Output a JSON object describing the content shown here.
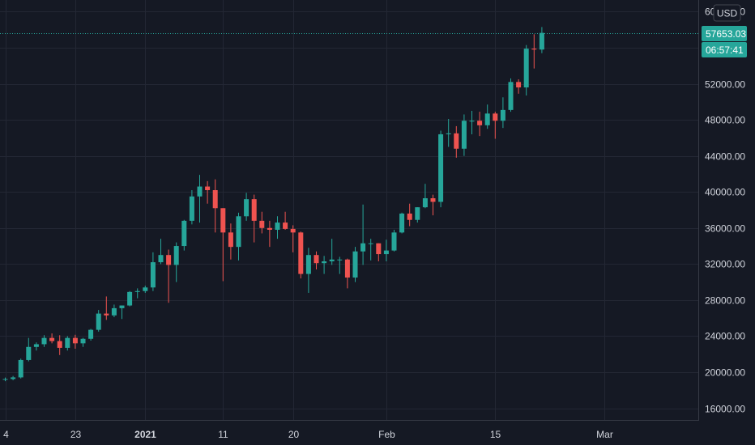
{
  "currency_button": "USD",
  "last_price_label": "57653.03",
  "countdown_label": "06:57:41",
  "colors": {
    "background": "#151924",
    "grid": "#232734",
    "axis_text": "#d1d4dc",
    "up": "#26a69a",
    "down": "#ef5350",
    "price_line": "#26a69a"
  },
  "chart_data": {
    "type": "candlestick",
    "title": "",
    "xlabel": "",
    "ylabel": "",
    "ylim": [
      14700,
      61300
    ],
    "y_ticks": [
      16000,
      20000,
      24000,
      28000,
      32000,
      36000,
      40000,
      44000,
      48000,
      52000,
      56000,
      60000
    ],
    "y_tick_labels": [
      "16000.00",
      "20000.00",
      "24000.00",
      "28000.00",
      "32000.00",
      "36000.00",
      "40000.00",
      "44000.00",
      "48000.00",
      "52000.00",
      "56000.00",
      "60000.00"
    ],
    "x_ticks": [
      "Dec 14",
      "Dec 23",
      "2021",
      "Jan 11",
      "Jan 20",
      "Feb",
      "Feb 15",
      "Mar"
    ],
    "x_tick_labels": [
      "4",
      "23",
      "2021",
      "11",
      "20",
      "Feb",
      "15",
      "Mar"
    ],
    "last_price": 57653.03,
    "grid": true,
    "candles": [
      {
        "date": "Dec 14",
        "o": 19180,
        "h": 19400,
        "l": 19000,
        "c": 19240
      },
      {
        "date": "Dec 15",
        "o": 19240,
        "h": 19580,
        "l": 19100,
        "c": 19420
      },
      {
        "date": "Dec 16",
        "o": 19420,
        "h": 21500,
        "l": 19300,
        "c": 21350
      },
      {
        "date": "Dec 17",
        "o": 21350,
        "h": 23800,
        "l": 21200,
        "c": 22800
      },
      {
        "date": "Dec 18",
        "o": 22800,
        "h": 23300,
        "l": 22400,
        "c": 23100
      },
      {
        "date": "Dec 19",
        "o": 23100,
        "h": 24100,
        "l": 22800,
        "c": 23800
      },
      {
        "date": "Dec 20",
        "o": 23800,
        "h": 24300,
        "l": 23200,
        "c": 23450
      },
      {
        "date": "Dec 21",
        "o": 23450,
        "h": 24100,
        "l": 21900,
        "c": 22700
      },
      {
        "date": "Dec 22",
        "o": 22700,
        "h": 24000,
        "l": 22400,
        "c": 23800
      },
      {
        "date": "Dec 23",
        "o": 23800,
        "h": 24150,
        "l": 22600,
        "c": 23200
      },
      {
        "date": "Dec 24",
        "o": 23200,
        "h": 23800,
        "l": 22800,
        "c": 23700
      },
      {
        "date": "Dec 25",
        "o": 23700,
        "h": 24800,
        "l": 23500,
        "c": 24700
      },
      {
        "date": "Dec 26",
        "o": 24700,
        "h": 26900,
        "l": 24500,
        "c": 26500
      },
      {
        "date": "Dec 27",
        "o": 26500,
        "h": 28400,
        "l": 25800,
        "c": 26300
      },
      {
        "date": "Dec 28",
        "o": 26300,
        "h": 27500,
        "l": 26100,
        "c": 27100
      },
      {
        "date": "Dec 29",
        "o": 27100,
        "h": 27400,
        "l": 25900,
        "c": 27400
      },
      {
        "date": "Dec 30",
        "o": 27400,
        "h": 29000,
        "l": 27300,
        "c": 28900
      },
      {
        "date": "Dec 31",
        "o": 28900,
        "h": 29300,
        "l": 28200,
        "c": 29000
      },
      {
        "date": "Jan 1",
        "o": 29000,
        "h": 29600,
        "l": 28800,
        "c": 29400
      },
      {
        "date": "Jan 2",
        "o": 29400,
        "h": 33300,
        "l": 29000,
        "c": 32200
      },
      {
        "date": "Jan 3",
        "o": 32200,
        "h": 34800,
        "l": 32000,
        "c": 33000
      },
      {
        "date": "Jan 4",
        "o": 33000,
        "h": 33600,
        "l": 27700,
        "c": 31900
      },
      {
        "date": "Jan 5",
        "o": 31900,
        "h": 34400,
        "l": 30000,
        "c": 34000
      },
      {
        "date": "Jan 6",
        "o": 34000,
        "h": 36900,
        "l": 33500,
        "c": 36800
      },
      {
        "date": "Jan 7",
        "o": 36800,
        "h": 40200,
        "l": 36400,
        "c": 39500
      },
      {
        "date": "Jan 8",
        "o": 39500,
        "h": 41900,
        "l": 36600,
        "c": 40600
      },
      {
        "date": "Jan 9",
        "o": 40600,
        "h": 41200,
        "l": 38700,
        "c": 40200
      },
      {
        "date": "Jan 10",
        "o": 40200,
        "h": 41400,
        "l": 35500,
        "c": 38200
      },
      {
        "date": "Jan 11",
        "o": 38200,
        "h": 38200,
        "l": 30100,
        "c": 35500
      },
      {
        "date": "Jan 12",
        "o": 35500,
        "h": 36500,
        "l": 32500,
        "c": 33900
      },
      {
        "date": "Jan 13",
        "o": 33900,
        "h": 37700,
        "l": 32400,
        "c": 37300
      },
      {
        "date": "Jan 14",
        "o": 37300,
        "h": 39900,
        "l": 36800,
        "c": 39200
      },
      {
        "date": "Jan 15",
        "o": 39200,
        "h": 39700,
        "l": 34400,
        "c": 36800
      },
      {
        "date": "Jan 16",
        "o": 36800,
        "h": 37800,
        "l": 35400,
        "c": 36000
      },
      {
        "date": "Jan 17",
        "o": 36000,
        "h": 36800,
        "l": 33900,
        "c": 35800
      },
      {
        "date": "Jan 18",
        "o": 35800,
        "h": 37300,
        "l": 34800,
        "c": 36600
      },
      {
        "date": "Jan 19",
        "o": 36600,
        "h": 37800,
        "l": 35800,
        "c": 35900
      },
      {
        "date": "Jan 20",
        "o": 35900,
        "h": 36300,
        "l": 33300,
        "c": 35500
      },
      {
        "date": "Jan 21",
        "o": 35500,
        "h": 35600,
        "l": 30400,
        "c": 30900
      },
      {
        "date": "Jan 22",
        "o": 30900,
        "h": 33800,
        "l": 28800,
        "c": 33000
      },
      {
        "date": "Jan 23",
        "o": 33000,
        "h": 33400,
        "l": 31400,
        "c": 32100
      },
      {
        "date": "Jan 24",
        "o": 32100,
        "h": 32900,
        "l": 30900,
        "c": 32300
      },
      {
        "date": "Jan 25",
        "o": 32300,
        "h": 34800,
        "l": 31900,
        "c": 32500
      },
      {
        "date": "Jan 26",
        "o": 32500,
        "h": 32800,
        "l": 30900,
        "c": 32500
      },
      {
        "date": "Jan 27",
        "o": 32500,
        "h": 32600,
        "l": 29300,
        "c": 30500
      },
      {
        "date": "Jan 28",
        "o": 30500,
        "h": 33900,
        "l": 30000,
        "c": 33400
      },
      {
        "date": "Jan 29",
        "o": 33400,
        "h": 38600,
        "l": 31900,
        "c": 34300
      },
      {
        "date": "Jan 30",
        "o": 34300,
        "h": 34800,
        "l": 32400,
        "c": 34300
      },
      {
        "date": "Jan 31",
        "o": 34300,
        "h": 34300,
        "l": 32300,
        "c": 33100
      },
      {
        "date": "Feb 1",
        "o": 33100,
        "h": 34700,
        "l": 32300,
        "c": 33500
      },
      {
        "date": "Feb 2",
        "o": 33500,
        "h": 35800,
        "l": 33400,
        "c": 35500
      },
      {
        "date": "Feb 3",
        "o": 35500,
        "h": 37700,
        "l": 35400,
        "c": 37600
      },
      {
        "date": "Feb 4",
        "o": 37600,
        "h": 38700,
        "l": 36200,
        "c": 36900
      },
      {
        "date": "Feb 5",
        "o": 36900,
        "h": 38300,
        "l": 36600,
        "c": 38300
      },
      {
        "date": "Feb 6",
        "o": 38300,
        "h": 40900,
        "l": 38200,
        "c": 39300
      },
      {
        "date": "Feb 7",
        "o": 39300,
        "h": 39700,
        "l": 37400,
        "c": 38900
      },
      {
        "date": "Feb 8",
        "o": 38900,
        "h": 46800,
        "l": 38300,
        "c": 46400
      },
      {
        "date": "Feb 9",
        "o": 46400,
        "h": 48100,
        "l": 45000,
        "c": 46500
      },
      {
        "date": "Feb 10",
        "o": 46500,
        "h": 47300,
        "l": 43800,
        "c": 44800
      },
      {
        "date": "Feb 11",
        "o": 44800,
        "h": 48600,
        "l": 44000,
        "c": 47900
      },
      {
        "date": "Feb 12",
        "o": 47900,
        "h": 49000,
        "l": 46400,
        "c": 47900
      },
      {
        "date": "Feb 13",
        "o": 47900,
        "h": 48900,
        "l": 46200,
        "c": 47400
      },
      {
        "date": "Feb 14",
        "o": 47400,
        "h": 49700,
        "l": 47000,
        "c": 48700
      },
      {
        "date": "Feb 15",
        "o": 48700,
        "h": 48900,
        "l": 45900,
        "c": 47900
      },
      {
        "date": "Feb 16",
        "o": 47900,
        "h": 50500,
        "l": 47100,
        "c": 49100
      },
      {
        "date": "Feb 17",
        "o": 49100,
        "h": 52600,
        "l": 48900,
        "c": 52200
      },
      {
        "date": "Feb 18",
        "o": 52200,
        "h": 52500,
        "l": 50900,
        "c": 51600
      },
      {
        "date": "Feb 19",
        "o": 51600,
        "h": 56300,
        "l": 50700,
        "c": 55900
      },
      {
        "date": "Feb 20",
        "o": 55900,
        "h": 57500,
        "l": 53700,
        "c": 55800
      },
      {
        "date": "Feb 21",
        "o": 55800,
        "h": 58300,
        "l": 55400,
        "c": 57653
      }
    ]
  }
}
